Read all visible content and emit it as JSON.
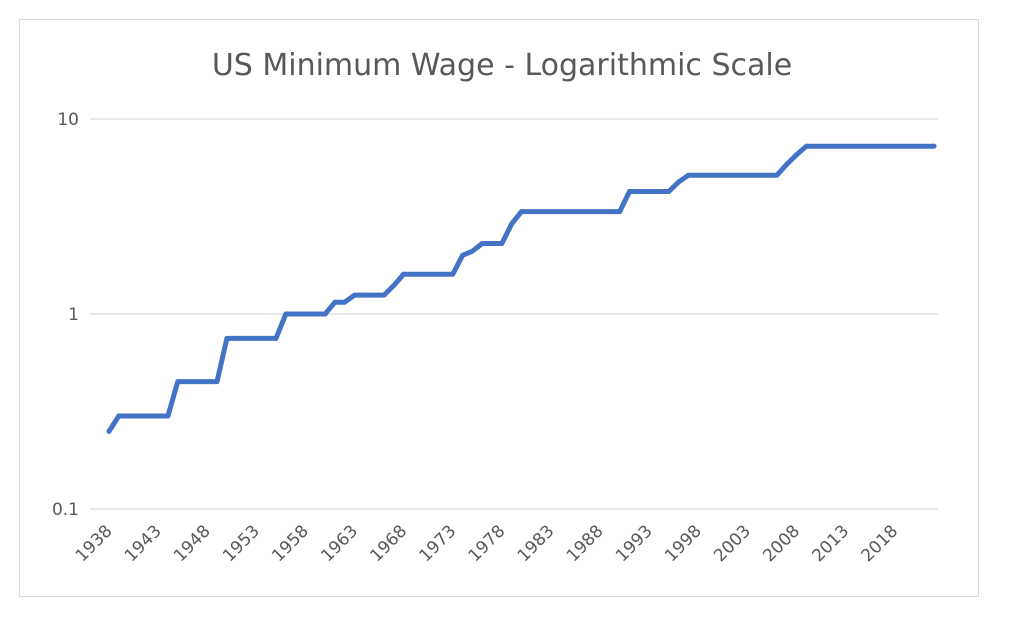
{
  "chart_data": {
    "type": "line",
    "title": "US Minimum Wage - Logarithmic Scale",
    "xlabel": "",
    "ylabel": "",
    "y_scale": "log",
    "ylim": [
      0.1,
      10
    ],
    "y_ticks": [
      "0.1",
      "1",
      "10"
    ],
    "x_ticks": [
      "1938",
      "1943",
      "1948",
      "1953",
      "1958",
      "1963",
      "1968",
      "1973",
      "1978",
      "1983",
      "1988",
      "1993",
      "1998",
      "2003",
      "2008",
      "2013",
      "2018"
    ],
    "xlim": [
      1938,
      2022
    ],
    "grid": true,
    "legend": "none",
    "series": [
      {
        "color": "#4472c4",
        "x": [
          1938,
          1939,
          1944,
          1945,
          1949,
          1950,
          1955,
          1956,
          1960,
          1961,
          1962,
          1963,
          1966,
          1967,
          1968,
          1973,
          1974,
          1975,
          1976,
          1978,
          1979,
          1980,
          1990,
          1991,
          1995,
          1996,
          1997,
          2006,
          2007,
          2008,
          2009,
          2022
        ],
        "y": [
          0.25,
          0.3,
          0.3,
          0.45,
          0.45,
          0.75,
          0.75,
          1.0,
          1.0,
          1.15,
          1.15,
          1.25,
          1.25,
          1.4,
          1.6,
          1.6,
          2.0,
          2.1,
          2.3,
          2.3,
          2.9,
          3.35,
          3.35,
          4.25,
          4.25,
          4.75,
          5.15,
          5.15,
          5.85,
          6.55,
          7.25,
          7.25
        ]
      }
    ]
  }
}
